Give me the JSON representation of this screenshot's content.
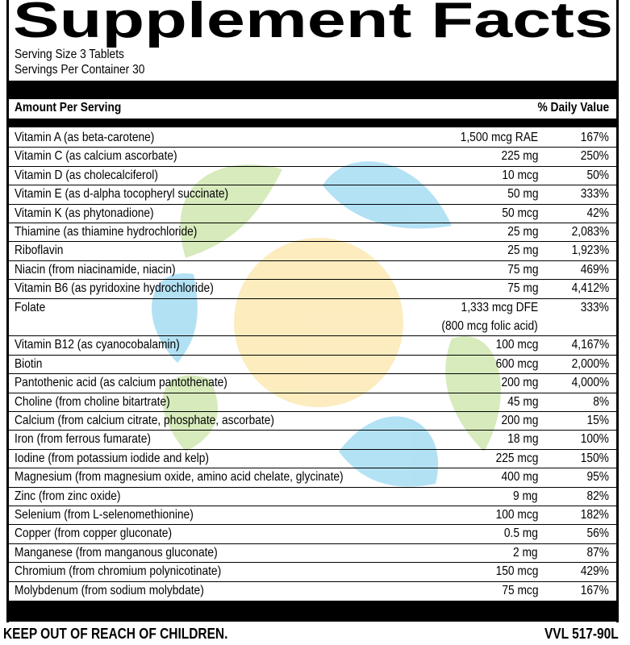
{
  "header": {
    "title": "Supplement Facts",
    "serving_size": "Serving Size 3 Tablets",
    "servings_per_container": "Servings Per Container 30"
  },
  "table": {
    "columns": [
      "Amount Per Serving",
      "% Daily Value"
    ],
    "rows": [
      {
        "name": "Vitamin A (as beta-carotene)",
        "amount": "1,500 mcg RAE",
        "dv": "167%"
      },
      {
        "name": "Vitamin C (as calcium ascorbate)",
        "amount": "225 mg",
        "dv": "250%"
      },
      {
        "name": "Vitamin D (as cholecalciferol)",
        "amount": "10 mcg",
        "dv": "50%"
      },
      {
        "name": "Vitamin E (as d-alpha tocopheryl succinate)",
        "amount": "50 mg",
        "dv": "333%"
      },
      {
        "name": "Vitamin K (as phytonadione)",
        "amount": "50 mcg",
        "dv": "42%"
      },
      {
        "name": "Thiamine (as thiamine hydrochloride)",
        "amount": "25 mg",
        "dv": "2,083%"
      },
      {
        "name": "Riboflavin",
        "amount": "25 mg",
        "dv": "1,923%"
      },
      {
        "name": "Niacin (from niacinamide, niacin)",
        "amount": "75 mg",
        "dv": "469%"
      },
      {
        "name": "Vitamin B6 (as pyridoxine hydrochloride)",
        "amount": "75 mg",
        "dv": "4,412%"
      },
      {
        "name": "Folate",
        "amount": "1,333 mcg DFE",
        "note": "(800 mcg folic acid)",
        "dv": "333%"
      },
      {
        "name": "Vitamin B12 (as cyanocobalamin)",
        "amount": "100 mcg",
        "dv": "4,167%"
      },
      {
        "name": "Biotin",
        "amount": "600 mcg",
        "dv": "2,000%"
      },
      {
        "name": "Pantothenic acid (as calcium pantothenate)",
        "amount": "200 mg",
        "dv": "4,000%"
      },
      {
        "name": "Choline (from choline bitartrate)",
        "amount": "45 mg",
        "dv": "8%"
      },
      {
        "name": "Calcium (from calcium citrate, phosphate, ascorbate)",
        "amount": "200 mg",
        "dv": "15%"
      },
      {
        "name": "Iron (from ferrous fumarate)",
        "amount": "18 mg",
        "dv": "100%"
      },
      {
        "name": "Iodine (from potassium iodide and kelp)",
        "amount": "225 mcg",
        "dv": "150%"
      },
      {
        "name": "Magnesium (from magnesium oxide, amino acid chelate, glycinate)",
        "amount": "400 mg",
        "dv": "95%"
      },
      {
        "name": "Zinc (from zinc oxide)",
        "amount": "9 mg",
        "dv": "82%"
      },
      {
        "name": "Selenium (from L-selenomethionine)",
        "amount": "100 mcg",
        "dv": "182%"
      },
      {
        "name": "Copper (from copper gluconate)",
        "amount": "0.5 mg",
        "dv": "56%"
      },
      {
        "name": "Manganese (from manganous gluconate)",
        "amount": "2 mg",
        "dv": "87%"
      },
      {
        "name": "Chromium (from chromium polynicotinate)",
        "amount": "150 mcg",
        "dv": "429%"
      },
      {
        "name": "Molybdenum (from sodium molybdate)",
        "amount": "75 mcg",
        "dv": "167%"
      }
    ]
  },
  "footer": {
    "warning": "KEEP OUT OF REACH OF CHILDREN.",
    "code": "VVL 517-90L"
  }
}
